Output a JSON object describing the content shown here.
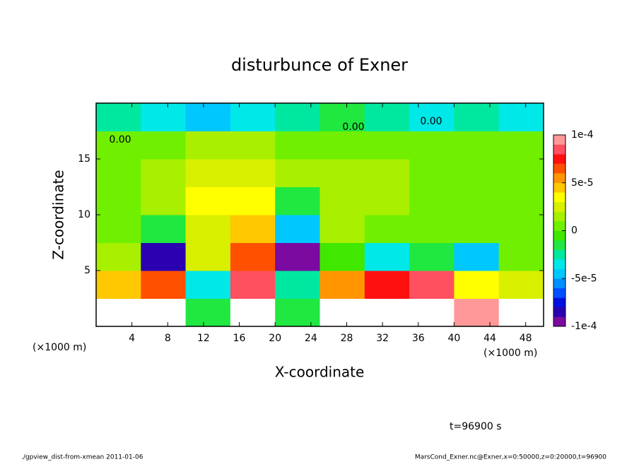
{
  "chart_data": {
    "type": "contour",
    "title": "disturbunce of Exner",
    "x_label": "X-coordinate",
    "y_label": "Z-coordinate",
    "x_unit": "(×1000 m)",
    "x_unit_right": "(×1000 m)",
    "time_label": "t=96900 s",
    "footer_left": "./gpview_dist-from-xmean  2011-01-06",
    "footer_right": "MarsCond_Exner.nc@Exner,x=0:50000,z=0:20000,t=96900",
    "contour_labels": [
      "0.00",
      "0.00",
      "0.00"
    ],
    "x": [
      2.5,
      7.5,
      12.5,
      17.5,
      22.5,
      27.5,
      32.5,
      37.5,
      42.5,
      47.5
    ],
    "z": [
      1.25,
      3.75,
      6.25,
      8.75,
      11.25,
      13.75,
      16.25,
      18.75
    ],
    "values": [
      [
        0.00012,
        0.00011,
        -2e-05,
        0.00013,
        -2e-05,
        0.00012,
        0.00011,
        0.00012,
        9e-05,
        0.00012
      ],
      [
        4e-05,
        6e-05,
        -4e-05,
        8e-05,
        -3e-05,
        5e-05,
        7e-05,
        8e-05,
        3e-05,
        2e-05
      ],
      [
        1e-05,
        -8e-05,
        2e-05,
        6e-05,
        -9e-05,
        -1e-05,
        -4e-05,
        -2e-05,
        -5e-05,
        0
      ],
      [
        0,
        -2e-05,
        2e-05,
        4e-05,
        -5e-05,
        1e-05,
        0,
        0,
        0,
        0
      ],
      [
        0,
        1e-05,
        3e-05,
        3e-05,
        -2e-05,
        1e-05,
        1e-05,
        0,
        0,
        0
      ],
      [
        0,
        1e-05,
        2e-05,
        2e-05,
        1e-05,
        1e-05,
        1e-05,
        0,
        0,
        0
      ],
      [
        0,
        0,
        1e-05,
        1e-05,
        0,
        0,
        0,
        0,
        0,
        0
      ],
      [
        -3e-05,
        -4e-05,
        -5e-05,
        -4e-05,
        -3e-05,
        -2e-05,
        -3e-05,
        -4e-05,
        -3e-05,
        -4e-05
      ]
    ],
    "xlim": [
      0,
      50
    ],
    "ylim": [
      0,
      20
    ],
    "xticks": [
      4,
      8,
      12,
      16,
      20,
      24,
      28,
      32,
      36,
      40,
      44,
      48
    ],
    "yticks": [
      5,
      10,
      15
    ],
    "clim": [
      -0.0001,
      0.0001
    ],
    "cticks": [
      {
        "value": 0.0001,
        "label": "1e-4"
      },
      {
        "value": 5e-05,
        "label": "5e-5"
      },
      0,
      {
        "value": -5e-05,
        "label": "-5e-5"
      },
      {
        "value": -0.0001,
        "label": "-1e-4"
      }
    ],
    "colors": [
      "#7a0aa0",
      "#2a00b0",
      "#0010e0",
      "#0050ff",
      "#0090ff",
      "#00c8ff",
      "#00e8e8",
      "#00e8a0",
      "#20e840",
      "#40e800",
      "#70f000",
      "#a8f000",
      "#d8f000",
      "#ffff00",
      "#ffc800",
      "#ff9600",
      "#ff5000",
      "#ff1010",
      "#ff5060",
      "#ff9898"
    ],
    "over_color": "#ffffff"
  }
}
